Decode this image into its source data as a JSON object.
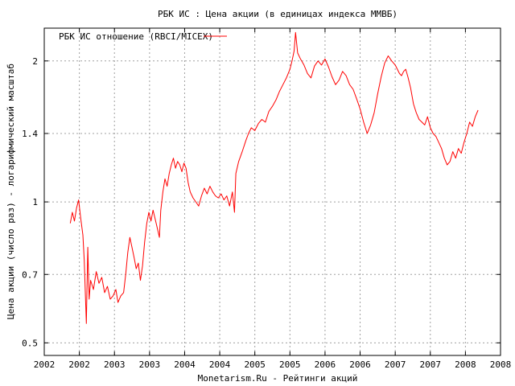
{
  "chart_data": {
    "type": "line",
    "title": "РБК ИС : Цена акции (в единицах индекса ММВБ)",
    "xlabel": "Monetarism.Ru - Рейтинги акций",
    "ylabel": "Цена акции (число раз) - логарифмический масштаб",
    "y_scale": "log",
    "ylim": [
      0.47,
      2.35
    ],
    "xlim": [
      2002.0,
      2008.5
    ],
    "y_ticks": [
      {
        "value": 0.5,
        "label": "0.5"
      },
      {
        "value": 0.7,
        "label": "0.7"
      },
      {
        "value": 1.0,
        "label": "1"
      },
      {
        "value": 1.4,
        "label": "1.4"
      },
      {
        "value": 2.0,
        "label": "2"
      }
    ],
    "x_ticks": [
      {
        "value": 2002.0,
        "label": "2002"
      },
      {
        "value": 2002.5,
        "label": "2002"
      },
      {
        "value": 2003.0,
        "label": "2003"
      },
      {
        "value": 2003.5,
        "label": "2003"
      },
      {
        "value": 2004.0,
        "label": "2004"
      },
      {
        "value": 2004.5,
        "label": "2004"
      },
      {
        "value": 2005.0,
        "label": "2005"
      },
      {
        "value": 2005.5,
        "label": "2005"
      },
      {
        "value": 2006.0,
        "label": "2006"
      },
      {
        "value": 2006.5,
        "label": "2006"
      },
      {
        "value": 2007.0,
        "label": "2007"
      },
      {
        "value": 2007.5,
        "label": "2007"
      },
      {
        "value": 2008.0,
        "label": "2008"
      },
      {
        "value": 2008.5,
        "label": "2008"
      }
    ],
    "grid": true,
    "legend_position": "top-left",
    "series": [
      {
        "name": "РБК ИС отношение (RBCI/MICEX)",
        "color": "#ff0000",
        "points": [
          [
            2002.37,
            0.9
          ],
          [
            2002.4,
            0.95
          ],
          [
            2002.43,
            0.91
          ],
          [
            2002.46,
            0.97
          ],
          [
            2002.49,
            1.01
          ],
          [
            2002.52,
            0.92
          ],
          [
            2002.55,
            0.85
          ],
          [
            2002.57,
            0.75
          ],
          [
            2002.6,
            0.55
          ],
          [
            2002.62,
            0.8
          ],
          [
            2002.64,
            0.62
          ],
          [
            2002.66,
            0.68
          ],
          [
            2002.7,
            0.65
          ],
          [
            2002.74,
            0.71
          ],
          [
            2002.78,
            0.67
          ],
          [
            2002.82,
            0.69
          ],
          [
            2002.86,
            0.64
          ],
          [
            2002.9,
            0.66
          ],
          [
            2002.94,
            0.62
          ],
          [
            2002.98,
            0.63
          ],
          [
            2003.02,
            0.65
          ],
          [
            2003.05,
            0.61
          ],
          [
            2003.09,
            0.63
          ],
          [
            2003.13,
            0.64
          ],
          [
            2003.16,
            0.7
          ],
          [
            2003.19,
            0.78
          ],
          [
            2003.22,
            0.84
          ],
          [
            2003.25,
            0.8
          ],
          [
            2003.28,
            0.76
          ],
          [
            2003.31,
            0.72
          ],
          [
            2003.34,
            0.74
          ],
          [
            2003.37,
            0.68
          ],
          [
            2003.4,
            0.73
          ],
          [
            2003.43,
            0.82
          ],
          [
            2003.46,
            0.9
          ],
          [
            2003.49,
            0.95
          ],
          [
            2003.52,
            0.91
          ],
          [
            2003.55,
            0.96
          ],
          [
            2003.58,
            0.92
          ],
          [
            2003.61,
            0.88
          ],
          [
            2003.64,
            0.84
          ],
          [
            2003.66,
            0.96
          ],
          [
            2003.69,
            1.05
          ],
          [
            2003.72,
            1.12
          ],
          [
            2003.75,
            1.08
          ],
          [
            2003.78,
            1.15
          ],
          [
            2003.81,
            1.2
          ],
          [
            2003.84,
            1.24
          ],
          [
            2003.87,
            1.18
          ],
          [
            2003.9,
            1.22
          ],
          [
            2003.93,
            1.2
          ],
          [
            2003.96,
            1.16
          ],
          [
            2003.99,
            1.21
          ],
          [
            2004.02,
            1.18
          ],
          [
            2004.05,
            1.1
          ],
          [
            2004.08,
            1.05
          ],
          [
            2004.12,
            1.02
          ],
          [
            2004.16,
            1.0
          ],
          [
            2004.2,
            0.98
          ],
          [
            2004.24,
            1.03
          ],
          [
            2004.28,
            1.07
          ],
          [
            2004.32,
            1.04
          ],
          [
            2004.36,
            1.08
          ],
          [
            2004.4,
            1.05
          ],
          [
            2004.44,
            1.03
          ],
          [
            2004.48,
            1.02
          ],
          [
            2004.52,
            1.04
          ],
          [
            2004.56,
            1.01
          ],
          [
            2004.6,
            1.03
          ],
          [
            2004.64,
            0.98
          ],
          [
            2004.68,
            1.05
          ],
          [
            2004.71,
            0.95
          ],
          [
            2004.73,
            1.15
          ],
          [
            2004.77,
            1.22
          ],
          [
            2004.82,
            1.28
          ],
          [
            2004.87,
            1.35
          ],
          [
            2004.91,
            1.4
          ],
          [
            2004.95,
            1.44
          ],
          [
            2005.0,
            1.42
          ],
          [
            2005.05,
            1.47
          ],
          [
            2005.1,
            1.5
          ],
          [
            2005.15,
            1.48
          ],
          [
            2005.2,
            1.56
          ],
          [
            2005.25,
            1.6
          ],
          [
            2005.3,
            1.65
          ],
          [
            2005.35,
            1.72
          ],
          [
            2005.4,
            1.78
          ],
          [
            2005.45,
            1.84
          ],
          [
            2005.5,
            1.92
          ],
          [
            2005.53,
            2.0
          ],
          [
            2005.56,
            2.1
          ],
          [
            2005.58,
            2.3
          ],
          [
            2005.61,
            2.08
          ],
          [
            2005.65,
            2.02
          ],
          [
            2005.7,
            1.96
          ],
          [
            2005.75,
            1.88
          ],
          [
            2005.8,
            1.84
          ],
          [
            2005.85,
            1.95
          ],
          [
            2005.9,
            2.0
          ],
          [
            2005.95,
            1.96
          ],
          [
            2006.0,
            2.02
          ],
          [
            2006.05,
            1.94
          ],
          [
            2006.1,
            1.85
          ],
          [
            2006.15,
            1.78
          ],
          [
            2006.2,
            1.82
          ],
          [
            2006.25,
            1.9
          ],
          [
            2006.3,
            1.86
          ],
          [
            2006.35,
            1.78
          ],
          [
            2006.4,
            1.74
          ],
          [
            2006.45,
            1.66
          ],
          [
            2006.5,
            1.58
          ],
          [
            2006.55,
            1.48
          ],
          [
            2006.6,
            1.4
          ],
          [
            2006.65,
            1.46
          ],
          [
            2006.7,
            1.55
          ],
          [
            2006.75,
            1.7
          ],
          [
            2006.8,
            1.85
          ],
          [
            2006.85,
            1.98
          ],
          [
            2006.9,
            2.05
          ],
          [
            2006.95,
            2.0
          ],
          [
            2007.0,
            1.96
          ],
          [
            2007.03,
            1.92
          ],
          [
            2007.06,
            1.88
          ],
          [
            2007.09,
            1.86
          ],
          [
            2007.12,
            1.9
          ],
          [
            2007.15,
            1.92
          ],
          [
            2007.18,
            1.85
          ],
          [
            2007.22,
            1.75
          ],
          [
            2007.26,
            1.62
          ],
          [
            2007.3,
            1.55
          ],
          [
            2007.34,
            1.5
          ],
          [
            2007.38,
            1.48
          ],
          [
            2007.42,
            1.46
          ],
          [
            2007.46,
            1.52
          ],
          [
            2007.5,
            1.44
          ],
          [
            2007.54,
            1.4
          ],
          [
            2007.58,
            1.38
          ],
          [
            2007.62,
            1.34
          ],
          [
            2007.66,
            1.3
          ],
          [
            2007.7,
            1.24
          ],
          [
            2007.74,
            1.2
          ],
          [
            2007.78,
            1.22
          ],
          [
            2007.82,
            1.28
          ],
          [
            2007.86,
            1.24
          ],
          [
            2007.9,
            1.3
          ],
          [
            2007.94,
            1.27
          ],
          [
            2007.98,
            1.34
          ],
          [
            2008.02,
            1.4
          ],
          [
            2008.06,
            1.48
          ],
          [
            2008.1,
            1.45
          ],
          [
            2008.14,
            1.52
          ],
          [
            2008.18,
            1.57
          ]
        ]
      }
    ]
  }
}
